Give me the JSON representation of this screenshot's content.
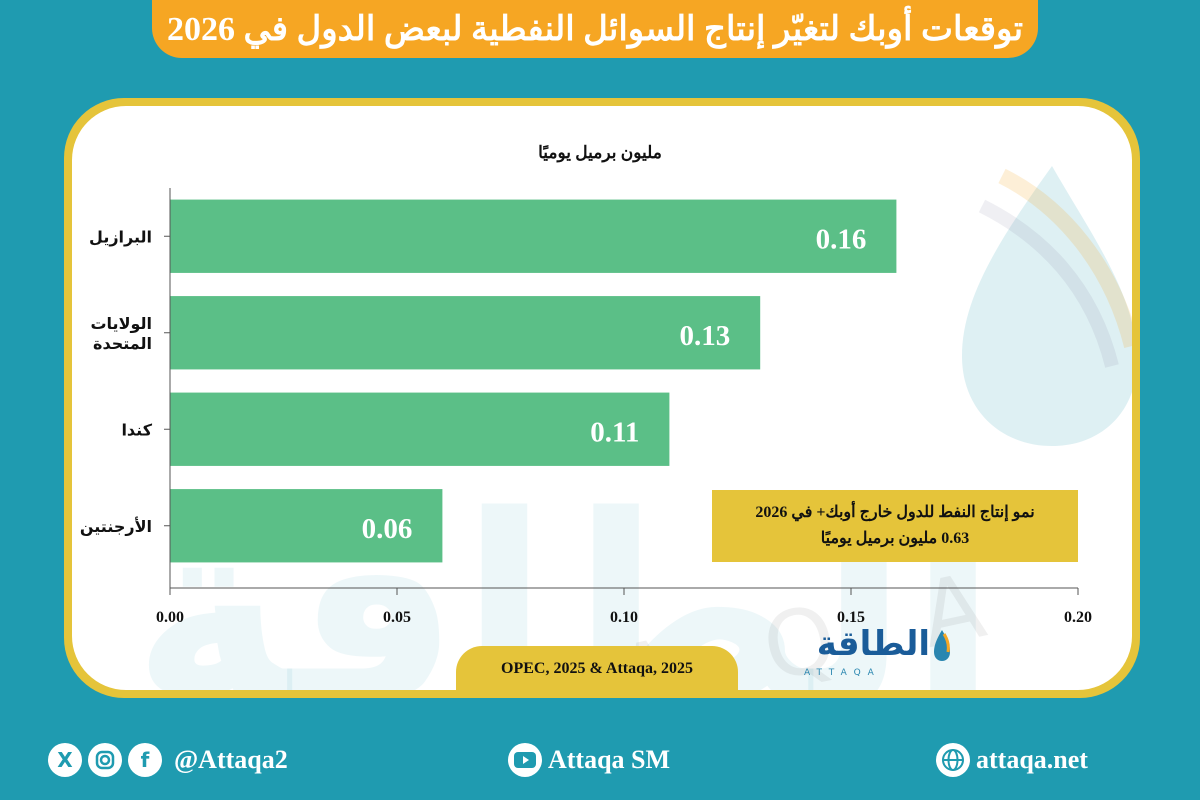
{
  "header": {
    "title": "توقعات أوبك لتغيّر إنتاج السوائل النفطية لبعض الدول في 2026"
  },
  "watermark": {
    "text_ar": "الطاقة",
    "text_latin": "ATTAQA"
  },
  "chart_data": {
    "type": "bar",
    "orientation": "horizontal",
    "title": "مليون برميل يوميًا",
    "categories": [
      "البرازيل",
      "الولايات المتحدة",
      "كندا",
      "الأرجنتين"
    ],
    "category_lines": [
      [
        "البرازيل"
      ],
      [
        "الولايات",
        "المتحدة"
      ],
      [
        "كندا"
      ],
      [
        "الأرجنتين"
      ]
    ],
    "values": [
      0.16,
      0.13,
      0.11,
      0.06
    ],
    "value_labels": [
      "0.16",
      "0.13",
      "0.11",
      "0.06"
    ],
    "xlim": [
      0,
      0.2
    ],
    "xticks": [
      0,
      0.05,
      0.1,
      0.15,
      0.2
    ],
    "xtick_labels": [
      "0.00",
      "0.05",
      "0.10",
      "0.15",
      "0.20"
    ],
    "grid": false,
    "bar_color": "#5bbf87",
    "label_color": "#ffffff"
  },
  "note": {
    "line1": "نمو إنتاج النفط للدول خارج أوبك+ في 2026",
    "line2": "0.63   مليون برميل يوميًا"
  },
  "source": {
    "text": "OPEC, 2025 & Attaqa, 2025"
  },
  "logo": {
    "arabic": "الطاقة",
    "latin": "ATTAQA"
  },
  "footer": {
    "handle": "@Attaqa2",
    "youtube": "Attaqa SM",
    "website": "attaqa.net"
  },
  "icons": {
    "x": "x-icon",
    "instagram": "instagram-icon",
    "facebook": "facebook-icon",
    "youtube": "youtube-icon",
    "globe": "globe-icon"
  },
  "colors": {
    "background": "#1f9bb0",
    "title_bar": "#f6a623",
    "frame": "#e5c43a",
    "bars": "#5bbf87"
  }
}
